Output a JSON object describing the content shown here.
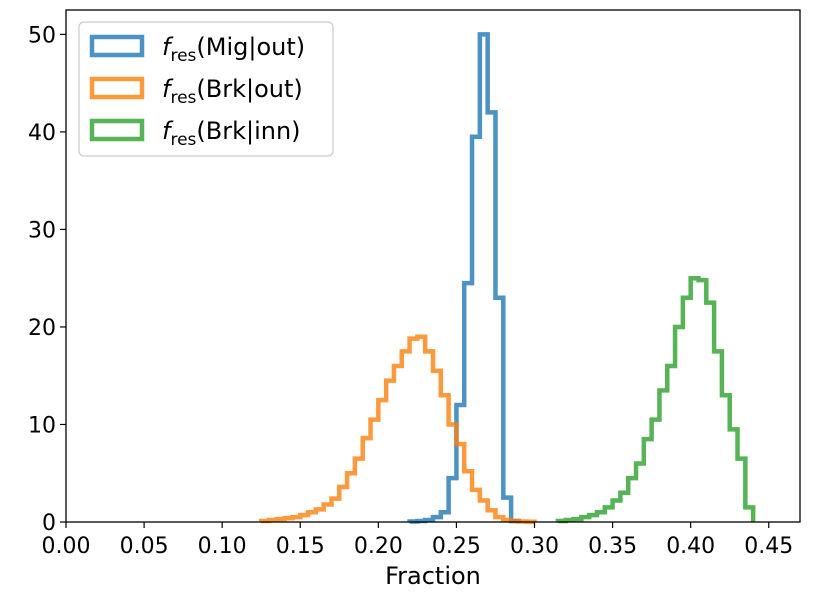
{
  "chart_data": {
    "type": "histogram",
    "xlabel": "Fraction",
    "ylabel": "",
    "xlim": [
      0.0,
      0.47
    ],
    "ylim": [
      0,
      52.5
    ],
    "x_ticks": [
      "0.00",
      "0.05",
      "0.10",
      "0.15",
      "0.20",
      "0.25",
      "0.30",
      "0.35",
      "0.40",
      "0.45"
    ],
    "y_ticks": [
      "0",
      "10",
      "20",
      "30",
      "40",
      "50"
    ],
    "grid": false,
    "legend_position": "top-left",
    "series": [
      {
        "name_main": "f",
        "name_sub": "res",
        "name_rest": "(Mig|out)",
        "color": "#1f77b4",
        "bin_edges": [
          0.22,
          0.225,
          0.23,
          0.235,
          0.24,
          0.245,
          0.25,
          0.255,
          0.26,
          0.265,
          0.27,
          0.275,
          0.28,
          0.285,
          0.29
        ],
        "values": [
          0.05,
          0.1,
          0.2,
          0.5,
          1.0,
          4.5,
          12.0,
          24.5,
          39.5,
          50.0,
          42.0,
          23.0,
          2.5,
          0.1
        ]
      },
      {
        "name_main": "f",
        "name_sub": "res",
        "name_rest": "(Brk|out)",
        "color": "#ff7f0e",
        "bin_edges": [
          0.125,
          0.13,
          0.135,
          0.14,
          0.145,
          0.15,
          0.155,
          0.16,
          0.165,
          0.17,
          0.175,
          0.18,
          0.185,
          0.19,
          0.195,
          0.2,
          0.205,
          0.21,
          0.215,
          0.22,
          0.225,
          0.23,
          0.235,
          0.24,
          0.245,
          0.25,
          0.255,
          0.26,
          0.265,
          0.27,
          0.275,
          0.28,
          0.285,
          0.29,
          0.295,
          0.3
        ],
        "values": [
          0.1,
          0.2,
          0.3,
          0.4,
          0.5,
          0.7,
          1.0,
          1.3,
          1.8,
          2.4,
          3.6,
          5.0,
          6.5,
          8.6,
          10.5,
          12.5,
          14.5,
          16.0,
          17.5,
          18.8,
          19.0,
          17.5,
          15.5,
          13.0,
          10.0,
          8.0,
          5.2,
          3.3,
          2.2,
          1.2,
          0.5,
          0.2,
          0.1,
          0.05,
          0.02
        ]
      },
      {
        "name_main": "f",
        "name_sub": "res",
        "name_rest": "(Brk|inn)",
        "color": "#2ca02c",
        "bin_edges": [
          0.315,
          0.32,
          0.325,
          0.33,
          0.335,
          0.34,
          0.345,
          0.35,
          0.355,
          0.36,
          0.365,
          0.37,
          0.375,
          0.38,
          0.385,
          0.39,
          0.395,
          0.4,
          0.405,
          0.41,
          0.415,
          0.42,
          0.425,
          0.43,
          0.435,
          0.44
        ],
        "values": [
          0.1,
          0.2,
          0.3,
          0.5,
          0.7,
          1.0,
          1.5,
          2.2,
          3.0,
          4.5,
          6.0,
          8.5,
          10.5,
          13.5,
          16.0,
          20.0,
          23.0,
          25.0,
          24.8,
          22.5,
          17.5,
          13.0,
          9.5,
          6.5,
          1.5
        ]
      }
    ]
  }
}
